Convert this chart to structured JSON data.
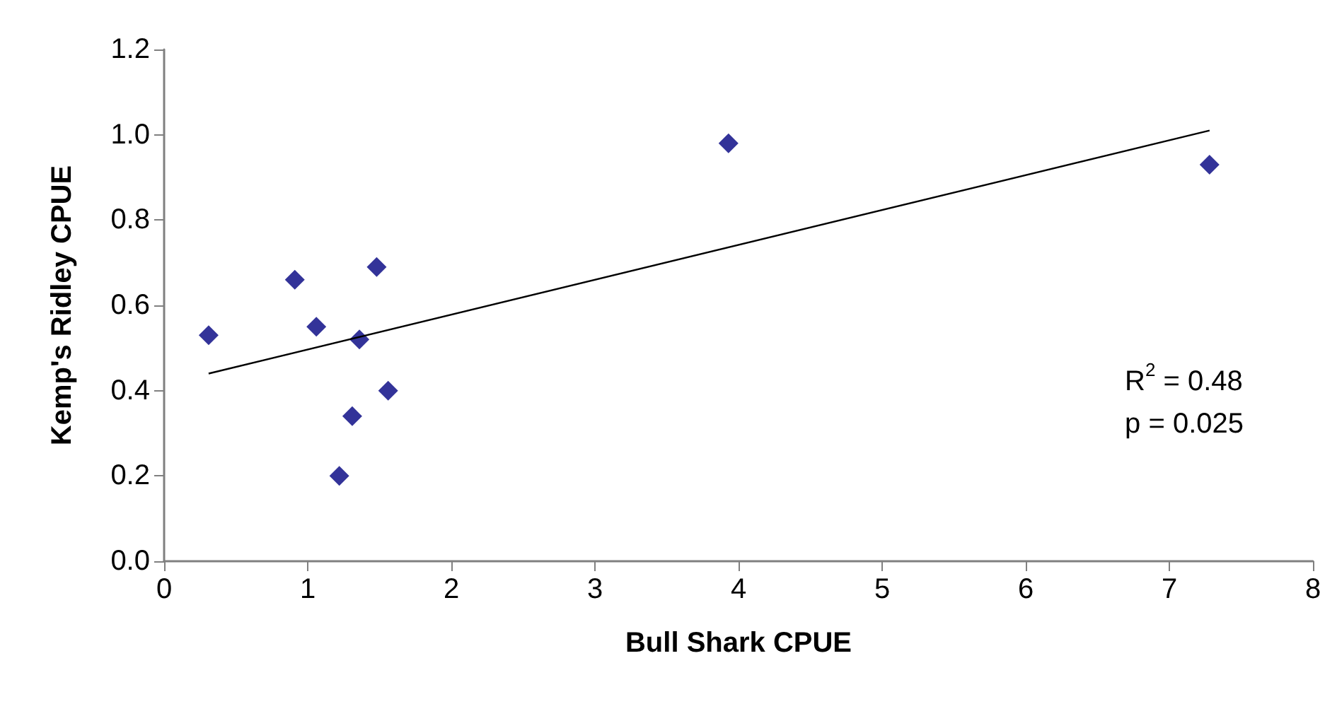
{
  "chart_data": {
    "type": "scatter",
    "xlabel": "Bull Shark CPUE",
    "ylabel": "Kemp's Ridley CPUE",
    "grid": false,
    "xlim": [
      0,
      8
    ],
    "xticks": [
      0,
      1,
      2,
      3,
      4,
      5,
      6,
      7,
      8
    ],
    "ylim": [
      0,
      1.2
    ],
    "yticks": [
      {
        "value": 0,
        "label": "0.0"
      },
      0.2,
      0.4,
      0.6,
      0.8,
      {
        "value": 1,
        "label": "1.0"
      },
      1.2
    ],
    "annotations": [
      "R$^{2}$ = 0.48\np = 0.025"
    ],
    "series": [
      {
        "color": "#000080",
        "marker": "diamond",
        "x": [
          0.31,
          0.91,
          1.06,
          1.36,
          1.48,
          1.56,
          1.31,
          1.22,
          3.93,
          7.28
        ],
        "values": [
          0.53,
          0.66,
          0.55,
          0.52,
          0.69,
          0.4,
          0.34,
          0.2,
          0.98,
          0.93
        ]
      },
      {
        "type": "line",
        "color": "#000000",
        "marker": "none",
        "x": [
          0.31,
          7.28
        ],
        "values": [
          0.44,
          1.01
        ]
      }
    ]
  }
}
